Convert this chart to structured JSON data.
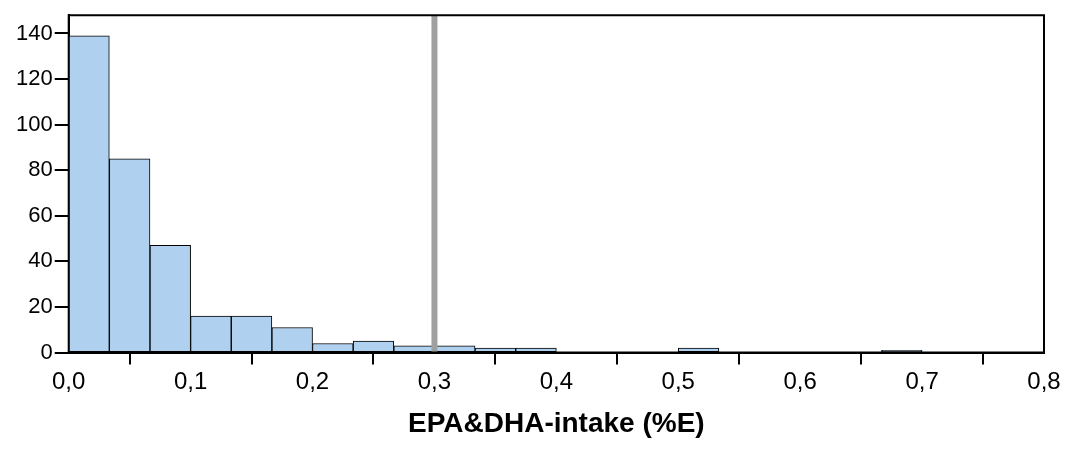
{
  "chart_data": {
    "type": "histogram",
    "xlabel": "EPA&DHA-intake (%E)",
    "bins": [
      0,
      0.0333,
      0.0667,
      0.1,
      0.1333,
      0.1667,
      0.2,
      0.2333,
      0.2667,
      0.3,
      0.3333,
      0.3667,
      0.4,
      0.4333,
      0.4667,
      0.5,
      0.5333,
      0.5667,
      0.6,
      0.6333,
      0.6667,
      0.7
    ],
    "values": [
      139,
      85,
      47,
      16,
      16,
      11,
      4,
      5,
      3,
      3,
      2,
      2,
      0,
      0,
      0,
      2,
      0,
      0,
      0,
      0,
      1
    ],
    "color": "#afd0ee",
    "xlim": [
      0,
      0.8
    ],
    "xticks": [
      {
        "value": 0,
        "label": "0,0"
      },
      {
        "value": 0.1,
        "label": "0,1"
      },
      {
        "value": 0.2,
        "label": "0,2"
      },
      {
        "value": 0.3,
        "label": "0,3"
      },
      {
        "value": 0.4,
        "label": "0,4"
      },
      {
        "value": 0.5,
        "label": "0,5"
      },
      {
        "value": 0.6,
        "label": "0,6"
      },
      {
        "value": 0.7,
        "label": "0,7"
      },
      {
        "value": 0.8,
        "label": "0,8"
      }
    ],
    "ylim": [
      0,
      148
    ],
    "yticks": [
      0,
      20,
      40,
      60,
      80,
      100,
      120,
      140
    ],
    "ref_lines": [
      {
        "axis": "x",
        "value": 0.3,
        "color": "#a0a0a0"
      }
    ],
    "grid": false,
    "legend": false
  }
}
